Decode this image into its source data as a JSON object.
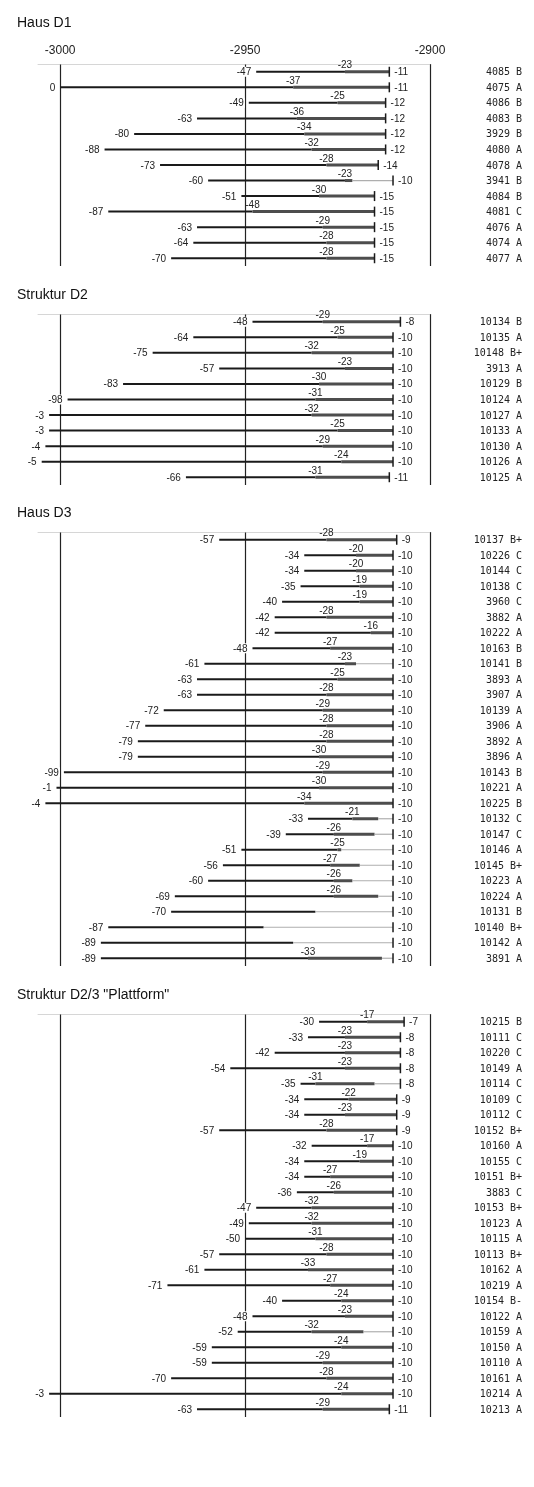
{
  "chart_data": [
    {
      "type": "bar",
      "title": "Haus D1",
      "orientation": "horizontal",
      "grid": "x",
      "xlim": [
        -3006,
        -2900
      ],
      "xticks": [
        -3000,
        -2950,
        -2900
      ],
      "categories": [
        "4085 B",
        "4075 A",
        "4086 B",
        "4083 B",
        "3929 B",
        "4080 A",
        "4078 A",
        "3941 B",
        "4084 B",
        "4081 C",
        "4076 A",
        "4074 A",
        "4077 A"
      ],
      "series": [
        {
          "color": "#1a1a1a",
          "base": [
            -2947,
            -3000,
            -2949,
            -2963,
            -2980,
            -2988,
            -2973,
            -2960,
            -2951,
            -2987,
            -2963,
            -2964,
            -2970
          ],
          "values": [
            24,
            63,
            24,
            27,
            46,
            56,
            45,
            37,
            21,
            39,
            34,
            36,
            42
          ]
        },
        {
          "color": "#4d4d4d",
          "base": [
            -2923,
            -2937,
            -2925,
            -2936,
            -2934,
            -2932,
            -2928,
            -2923,
            -2930,
            -2948,
            -2929,
            -2928,
            -2928
          ],
          "values": [
            12,
            26,
            13,
            24,
            22,
            20,
            14,
            2,
            15,
            33,
            14,
            13,
            13
          ]
        },
        {
          "color": "#9a9a9a",
          "line_style": "dotted",
          "base": [
            null,
            null,
            null,
            null,
            null,
            null,
            null,
            -2921,
            null,
            null,
            null,
            null,
            null
          ],
          "values": [
            null,
            null,
            null,
            null,
            null,
            null,
            null,
            11,
            null,
            null,
            null,
            null,
            null
          ]
        }
      ],
      "annotations": [
        {
          "text": "-47",
          "x": -2947,
          "y": "4085 B"
        },
        {
          "text": "-23",
          "x": -2923,
          "y": "4085 B"
        },
        {
          "text": "-11",
          "x": -2911,
          "y": "4085 B"
        },
        {
          "text": "0",
          "x": -3000,
          "y": "4075 A"
        },
        {
          "text": "-37",
          "x": -2937,
          "y": "4075 A"
        },
        {
          "text": "-11",
          "x": -2911,
          "y": "4075 A"
        },
        {
          "text": "-49",
          "x": -2949,
          "y": "4086 B"
        },
        {
          "text": "-25",
          "x": -2925,
          "y": "4086 B"
        },
        {
          "text": "-12",
          "x": -2912,
          "y": "4086 B"
        },
        {
          "text": "-63",
          "x": -2963,
          "y": "4083 B"
        },
        {
          "text": "-36",
          "x": -2936,
          "y": "4083 B"
        },
        {
          "text": "-12",
          "x": -2912,
          "y": "4083 B"
        },
        {
          "text": "-80",
          "x": -2980,
          "y": "3929 B"
        },
        {
          "text": "-34",
          "x": -2934,
          "y": "3929 B"
        },
        {
          "text": "-12",
          "x": -2912,
          "y": "3929 B"
        },
        {
          "text": "-88",
          "x": -2988,
          "y": "4080 A"
        },
        {
          "text": "-32",
          "x": -2932,
          "y": "4080 A"
        },
        {
          "text": "-12",
          "x": -2912,
          "y": "4080 A"
        },
        {
          "text": "-73",
          "x": -2973,
          "y": "4078 A"
        },
        {
          "text": "-28",
          "x": -2928,
          "y": "4078 A"
        },
        {
          "text": "-14",
          "x": -2914,
          "y": "4078 A"
        },
        {
          "text": "-60",
          "x": -2960,
          "y": "3941 B"
        },
        {
          "text": "-23",
          "x": -2923,
          "y": "3941 B"
        },
        {
          "text": "-10",
          "x": -2910,
          "y": "3941 B"
        },
        {
          "text": "-51",
          "x": -2951,
          "y": "4084 B"
        },
        {
          "text": "-30",
          "x": -2930,
          "y": "4084 B"
        },
        {
          "text": "-15",
          "x": -2915,
          "y": "4084 B"
        },
        {
          "text": "-87",
          "x": -2987,
          "y": "4081 C"
        },
        {
          "text": "-48",
          "x": -2948,
          "y": "4081 C"
        },
        {
          "text": "-15",
          "x": -2915,
          "y": "4081 C"
        },
        {
          "text": "-63",
          "x": -2963,
          "y": "4076 A"
        },
        {
          "text": "-29",
          "x": -2929,
          "y": "4076 A"
        },
        {
          "text": "-15",
          "x": -2915,
          "y": "4076 A"
        },
        {
          "text": "-64",
          "x": -2964,
          "y": "4074 A"
        },
        {
          "text": "-28",
          "x": -2928,
          "y": "4074 A"
        },
        {
          "text": "-15",
          "x": -2915,
          "y": "4074 A"
        },
        {
          "text": "-70",
          "x": -2970,
          "y": "4077 A"
        },
        {
          "text": "-28",
          "x": -2928,
          "y": "4077 A"
        },
        {
          "text": "-15",
          "x": -2915,
          "y": "4077 A"
        }
      ]
    },
    {
      "type": "bar",
      "title": "Struktur D2",
      "orientation": "horizontal",
      "grid": "x",
      "tick_labels": "y",
      "xlim": [
        -3006,
        -2900
      ],
      "xticks": [
        -3000,
        -2950,
        -2900
      ],
      "categories": [
        "10134 B",
        "10135 A",
        "10148 B+",
        "3913 A",
        "10129 B",
        "10124 A",
        "10127 A",
        "10133 A",
        "10130 A",
        "10126 A",
        "10125 A"
      ],
      "series": [
        {
          "color": "#1a1a1a",
          "base": [
            -2948,
            -2964,
            -2975,
            -2957,
            -2983,
            -2998,
            -3003,
            -3003,
            -3004,
            -3005,
            -2966
          ],
          "values": [
            19,
            39,
            43,
            34,
            53,
            67,
            71,
            78,
            75,
            81,
            35
          ]
        },
        {
          "color": "#4d4d4d",
          "base": [
            -2929,
            -2925,
            -2932,
            -2923,
            -2930,
            -2931,
            -2932,
            -2925,
            -2929,
            -2924,
            -2931
          ],
          "values": [
            21,
            15,
            22,
            13,
            20,
            21,
            22,
            15,
            19,
            14,
            20
          ]
        }
      ],
      "annotations": [
        {
          "text": "-48",
          "x": -2948,
          "y": "10134 B"
        },
        {
          "text": "-29",
          "x": -2929,
          "y": "10134 B"
        },
        {
          "text": "-8",
          "x": -2908,
          "y": "10134 B"
        },
        {
          "text": "-64",
          "x": -2964,
          "y": "10135 A"
        },
        {
          "text": "-25",
          "x": -2925,
          "y": "10135 A"
        },
        {
          "text": "-10",
          "x": -2910,
          "y": "10135 A"
        },
        {
          "text": "-75",
          "x": -2975,
          "y": "10148 B+"
        },
        {
          "text": "-32",
          "x": -2932,
          "y": "10148 B+"
        },
        {
          "text": "-10",
          "x": -2910,
          "y": "10148 B+"
        },
        {
          "text": "-57",
          "x": -2957,
          "y": "3913 A"
        },
        {
          "text": "-23",
          "x": -2923,
          "y": "3913 A"
        },
        {
          "text": "-10",
          "x": -2910,
          "y": "3913 A"
        },
        {
          "text": "-83",
          "x": -2983,
          "y": "10129 B"
        },
        {
          "text": "-30",
          "x": -2930,
          "y": "10129 B"
        },
        {
          "text": "-10",
          "x": -2910,
          "y": "10129 B"
        },
        {
          "text": "-98",
          "x": -2998,
          "y": "10124 A"
        },
        {
          "text": "-31",
          "x": -2931,
          "y": "10124 A"
        },
        {
          "text": "-10",
          "x": -2910,
          "y": "10124 A"
        },
        {
          "text": "-3",
          "x": -3003,
          "y": "10127 A"
        },
        {
          "text": "-32",
          "x": -2932,
          "y": "10127 A"
        },
        {
          "text": "-10",
          "x": -2910,
          "y": "10127 A"
        },
        {
          "text": "-3",
          "x": -3003,
          "y": "10133 A"
        },
        {
          "text": "-25",
          "x": -2925,
          "y": "10133 A"
        },
        {
          "text": "-10",
          "x": -2910,
          "y": "10133 A"
        },
        {
          "text": "-4",
          "x": -3004,
          "y": "10130 A"
        },
        {
          "text": "-29",
          "x": -2929,
          "y": "10130 A"
        },
        {
          "text": "-10",
          "x": -2910,
          "y": "10130 A"
        },
        {
          "text": "-5",
          "x": -3005,
          "y": "10126 A"
        },
        {
          "text": "-24",
          "x": -2924,
          "y": "10126 A"
        },
        {
          "text": "-10",
          "x": -2910,
          "y": "10126 A"
        },
        {
          "text": "-66",
          "x": -2966,
          "y": "10125 A"
        },
        {
          "text": "-31",
          "x": -2931,
          "y": "10125 A"
        },
        {
          "text": "-11",
          "x": -2911,
          "y": "10125 A"
        }
      ]
    },
    {
      "type": "bar",
      "title": "Haus D3",
      "orientation": "horizontal",
      "grid": "x",
      "tick_labels": "y",
      "xlim": [
        -3006,
        -2900
      ],
      "xticks": [
        -3000,
        -2950,
        -2900
      ],
      "categories": [
        "10137 B+",
        "10226 C",
        "10144 C",
        "10138 C",
        "3960 C",
        "3882 A",
        "10222 A",
        "10163 B",
        "10141 B",
        "3893 A",
        "3907 A",
        "10139 A",
        "3906 A",
        "3892 A",
        "3896 A",
        "10143 B",
        "10221 A",
        "10225 B",
        "10132 C",
        "10147 C",
        "10146 A",
        "10145 B+",
        "10223 A",
        "10224 A",
        "10131 B",
        "10140 B+",
        "10142 A",
        "3891 A"
      ],
      "series": [
        {
          "color": "#1a1a1a",
          "base": [
            -2957,
            -2934,
            -2934,
            -2935,
            -2940,
            -2942,
            -2942,
            -2948,
            -2961,
            -2963,
            -2963,
            -2972,
            -2977,
            -2979,
            -2979,
            -2999,
            -3001,
            -3004,
            -2933,
            -2939,
            -2951,
            -2956,
            -2960,
            -2969,
            -2970,
            -2987,
            -2989,
            -2989
          ],
          "values": [
            29,
            14,
            14,
            16,
            21,
            14,
            26,
            21,
            38,
            38,
            35,
            43,
            49,
            51,
            49,
            70,
            71,
            70,
            12,
            13,
            26,
            29,
            34,
            43,
            39,
            42,
            52,
            56
          ]
        },
        {
          "color": "#4d4d4d",
          "base": [
            -2928,
            -2920,
            -2920,
            -2919,
            -2919,
            -2928,
            -2916,
            -2927,
            -2923,
            -2925,
            -2928,
            -2929,
            -2928,
            -2928,
            -2930,
            -2929,
            -2930,
            -2934,
            -2921,
            -2926,
            -2925,
            -2927,
            -2926,
            -2926,
            null,
            null,
            null,
            -2933
          ],
          "values": [
            19,
            10,
            10,
            9,
            9,
            18,
            6,
            17,
            3,
            15,
            18,
            19,
            18,
            18,
            20,
            19,
            20,
            24,
            7,
            11,
            1,
            8,
            5,
            12,
            null,
            null,
            null,
            20
          ]
        },
        {
          "color": "#9a9a9a",
          "line_style": "dotted",
          "base": [
            null,
            null,
            null,
            null,
            null,
            null,
            null,
            null,
            -2920,
            null,
            null,
            null,
            null,
            null,
            null,
            null,
            null,
            null,
            -2914,
            -2915,
            -2924,
            -2919,
            -2921,
            -2914,
            -2931,
            -2945,
            -2937,
            -2913
          ],
          "values": [
            null,
            null,
            null,
            null,
            null,
            null,
            null,
            null,
            10,
            null,
            null,
            null,
            null,
            null,
            null,
            null,
            null,
            null,
            4,
            5,
            14,
            9,
            11,
            4,
            21,
            35,
            27,
            3
          ]
        }
      ],
      "annotations": [
        {
          "text": "-57",
          "x": -2957,
          "y": "10137 B+"
        },
        {
          "text": "-28",
          "x": -2928,
          "y": "10137 B+"
        },
        {
          "text": "-9",
          "x": -2909,
          "y": "10137 B+"
        },
        {
          "text": "-34",
          "x": -2934,
          "y": "10226 C"
        },
        {
          "text": "-20",
          "x": -2920,
          "y": "10226 C"
        },
        {
          "text": "-10",
          "x": -2910,
          "y": "10226 C"
        },
        {
          "text": "-34",
          "x": -2934,
          "y": "10144 C"
        },
        {
          "text": "-20",
          "x": -2920,
          "y": "10144 C"
        },
        {
          "text": "-10",
          "x": -2910,
          "y": "10144 C"
        },
        {
          "text": "-35",
          "x": -2935,
          "y": "10138 C"
        },
        {
          "text": "-19",
          "x": -2919,
          "y": "10138 C"
        },
        {
          "text": "-10",
          "x": -2910,
          "y": "10138 C"
        },
        {
          "text": "-40",
          "x": -2940,
          "y": "3960 C"
        },
        {
          "text": "-19",
          "x": -2919,
          "y": "3960 C"
        },
        {
          "text": "-10",
          "x": -2910,
          "y": "3960 C"
        },
        {
          "text": "-42",
          "x": -2942,
          "y": "3882 A"
        },
        {
          "text": "-28",
          "x": -2928,
          "y": "3882 A"
        },
        {
          "text": "-10",
          "x": -2910,
          "y": "3882 A"
        },
        {
          "text": "-42",
          "x": -2942,
          "y": "10222 A"
        },
        {
          "text": "-16",
          "x": -2916,
          "y": "10222 A"
        },
        {
          "text": "-10",
          "x": -2910,
          "y": "10222 A"
        },
        {
          "text": "-48",
          "x": -2948,
          "y": "10163 B"
        },
        {
          "text": "-27",
          "x": -2927,
          "y": "10163 B"
        },
        {
          "text": "-10",
          "x": -2910,
          "y": "10163 B"
        },
        {
          "text": "-61",
          "x": -2961,
          "y": "10141 B"
        },
        {
          "text": "-23",
          "x": -2923,
          "y": "10141 B"
        },
        {
          "text": "-10",
          "x": -2910,
          "y": "10141 B"
        },
        {
          "text": "-63",
          "x": -2963,
          "y": "3893 A"
        },
        {
          "text": "-25",
          "x": -2925,
          "y": "3893 A"
        },
        {
          "text": "-10",
          "x": -2910,
          "y": "3893 A"
        },
        {
          "text": "-63",
          "x": -2963,
          "y": "3907 A"
        },
        {
          "text": "-28",
          "x": -2928,
          "y": "3907 A"
        },
        {
          "text": "-10",
          "x": -2910,
          "y": "3907 A"
        },
        {
          "text": "-72",
          "x": -2972,
          "y": "10139 A"
        },
        {
          "text": "-29",
          "x": -2929,
          "y": "10139 A"
        },
        {
          "text": "-10",
          "x": -2910,
          "y": "10139 A"
        },
        {
          "text": "-77",
          "x": -2977,
          "y": "3906 A"
        },
        {
          "text": "-28",
          "x": -2928,
          "y": "3906 A"
        },
        {
          "text": "-10",
          "x": -2910,
          "y": "3906 A"
        },
        {
          "text": "-79",
          "x": -2979,
          "y": "3892 A"
        },
        {
          "text": "-28",
          "x": -2928,
          "y": "3892 A"
        },
        {
          "text": "-10",
          "x": -2910,
          "y": "3892 A"
        },
        {
          "text": "-79",
          "x": -2979,
          "y": "3896 A"
        },
        {
          "text": "-30",
          "x": -2930,
          "y": "3896 A"
        },
        {
          "text": "-10",
          "x": -2910,
          "y": "3896 A"
        },
        {
          "text": "-99",
          "x": -2999,
          "y": "10143 B"
        },
        {
          "text": "-29",
          "x": -2929,
          "y": "10143 B"
        },
        {
          "text": "-10",
          "x": -2910,
          "y": "10143 B"
        },
        {
          "text": "-1",
          "x": -3001,
          "y": "10221 A"
        },
        {
          "text": "-30",
          "x": -2930,
          "y": "10221 A"
        },
        {
          "text": "-10",
          "x": -2910,
          "y": "10221 A"
        },
        {
          "text": "-4",
          "x": -3004,
          "y": "10225 B"
        },
        {
          "text": "-34",
          "x": -2934,
          "y": "10225 B"
        },
        {
          "text": "-10",
          "x": -2910,
          "y": "10225 B"
        },
        {
          "text": "-33",
          "x": -2933,
          "y": "10132 C"
        },
        {
          "text": "-21",
          "x": -2921,
          "y": "10132 C"
        },
        {
          "text": "-10",
          "x": -2910,
          "y": "10132 C"
        },
        {
          "text": "-39",
          "x": -2939,
          "y": "10147 C"
        },
        {
          "text": "-26",
          "x": -2926,
          "y": "10147 C"
        },
        {
          "text": "-10",
          "x": -2910,
          "y": "10147 C"
        },
        {
          "text": "-51",
          "x": -2951,
          "y": "10146 A"
        },
        {
          "text": "-25",
          "x": -2925,
          "y": "10146 A"
        },
        {
          "text": "-10",
          "x": -2910,
          "y": "10146 A"
        },
        {
          "text": "-56",
          "x": -2956,
          "y": "10145 B+"
        },
        {
          "text": "-27",
          "x": -2927,
          "y": "10145 B+"
        },
        {
          "text": "-10",
          "x": -2910,
          "y": "10145 B+"
        },
        {
          "text": "-60",
          "x": -2960,
          "y": "10223 A"
        },
        {
          "text": "-26",
          "x": -2926,
          "y": "10223 A"
        },
        {
          "text": "-10",
          "x": -2910,
          "y": "10223 A"
        },
        {
          "text": "-69",
          "x": -2969,
          "y": "10224 A"
        },
        {
          "text": "-26",
          "x": -2926,
          "y": "10224 A"
        },
        {
          "text": "-10",
          "x": -2910,
          "y": "10224 A"
        },
        {
          "text": "-70",
          "x": -2970,
          "y": "10131 B"
        },
        {
          "text": "-10",
          "x": -2910,
          "y": "10131 B"
        },
        {
          "text": "-87",
          "x": -2987,
          "y": "10140 B+"
        },
        {
          "text": "-10",
          "x": -2910,
          "y": "10140 B+"
        },
        {
          "text": "-89",
          "x": -2989,
          "y": "10142 A"
        },
        {
          "text": "-10",
          "x": -2910,
          "y": "10142 A"
        },
        {
          "text": "-89",
          "x": -2989,
          "y": "3891 A"
        },
        {
          "text": "-33",
          "x": -2933,
          "y": "3891 A"
        },
        {
          "text": "-10",
          "x": -2910,
          "y": "3891 A"
        }
      ]
    },
    {
      "type": "bar",
      "title": "Struktur D2/3 \"Plattform\"",
      "orientation": "horizontal",
      "grid": "x",
      "tick_labels": "y",
      "xlim": [
        -3006,
        -2900
      ],
      "xticks": [
        -3000,
        -2950,
        -2900
      ],
      "categories": [
        "10215 B",
        "10111 C",
        "10220 C",
        "10149 A",
        "10114 C",
        "10109 C",
        "10112 C",
        "10152 B+",
        "10160 A",
        "10155 C",
        "10151 B+",
        "3883 C",
        "10153 B+",
        "10123 A",
        "10115 A",
        "10113 B+",
        "10162 A",
        "10219 A",
        "10154 B-",
        "10122 A",
        "10159 A",
        "10150 A",
        "10110 A",
        "10161 A",
        "10214 A",
        "10213 A"
      ],
      "series": [
        {
          "color": "#1a1a1a",
          "base": [
            -2930,
            -2933,
            -2942,
            -2954,
            -2935,
            -2934,
            -2934,
            -2957,
            -2932,
            -2934,
            -2934,
            -2936,
            -2947,
            -2949,
            -2950,
            -2957,
            -2961,
            -2971,
            -2940,
            -2948,
            -2952,
            -2959,
            -2959,
            -2970,
            -3003,
            -2963
          ],
          "values": [
            13,
            10,
            19,
            31,
            4,
            12,
            11,
            29,
            15,
            15,
            7,
            10,
            15,
            17,
            19,
            29,
            28,
            44,
            16,
            25,
            20,
            35,
            30,
            42,
            79,
            34
          ]
        },
        {
          "color": "#4d4d4d",
          "base": [
            -2917,
            -2923,
            -2923,
            -2923,
            -2931,
            -2922,
            -2923,
            -2928,
            -2917,
            -2919,
            -2927,
            -2926,
            -2932,
            -2932,
            -2931,
            -2928,
            -2933,
            -2927,
            -2924,
            -2923,
            -2932,
            -2924,
            -2929,
            -2928,
            -2924,
            -2929
          ],
          "values": [
            10,
            15,
            15,
            15,
            16,
            13,
            14,
            19,
            7,
            9,
            17,
            16,
            22,
            22,
            21,
            18,
            23,
            17,
            14,
            13,
            14,
            14,
            19,
            18,
            14,
            18
          ]
        },
        {
          "color": "#9a9a9a",
          "line_style": "dotted",
          "base": [
            null,
            null,
            null,
            null,
            -2915,
            null,
            null,
            null,
            null,
            null,
            null,
            null,
            null,
            null,
            null,
            null,
            null,
            null,
            null,
            null,
            -2918,
            null,
            null,
            null,
            null,
            null
          ],
          "values": [
            null,
            null,
            null,
            null,
            7,
            null,
            null,
            null,
            null,
            null,
            null,
            null,
            null,
            null,
            null,
            null,
            null,
            null,
            null,
            null,
            8,
            null,
            null,
            null,
            null,
            null
          ]
        }
      ],
      "annotations": [
        {
          "text": "-30",
          "x": -2930,
          "y": "10215 B"
        },
        {
          "text": "-17",
          "x": -2917,
          "y": "10215 B"
        },
        {
          "text": "-7",
          "x": -2907,
          "y": "10215 B"
        },
        {
          "text": "-33",
          "x": -2933,
          "y": "10111 C"
        },
        {
          "text": "-23",
          "x": -2923,
          "y": "10111 C"
        },
        {
          "text": "-8",
          "x": -2908,
          "y": "10111 C"
        },
        {
          "text": "-42",
          "x": -2942,
          "y": "10220 C"
        },
        {
          "text": "-23",
          "x": -2923,
          "y": "10220 C"
        },
        {
          "text": "-8",
          "x": -2908,
          "y": "10220 C"
        },
        {
          "text": "-54",
          "x": -2954,
          "y": "10149 A"
        },
        {
          "text": "-23",
          "x": -2923,
          "y": "10149 A"
        },
        {
          "text": "-8",
          "x": -2908,
          "y": "10149 A"
        },
        {
          "text": "-35",
          "x": -2935,
          "y": "10114 C"
        },
        {
          "text": "-31",
          "x": -2931,
          "y": "10114 C"
        },
        {
          "text": "-8",
          "x": -2908,
          "y": "10114 C"
        },
        {
          "text": "-34",
          "x": -2934,
          "y": "10109 C"
        },
        {
          "text": "-22",
          "x": -2922,
          "y": "10109 C"
        },
        {
          "text": "-9",
          "x": -2909,
          "y": "10109 C"
        },
        {
          "text": "-34",
          "x": -2934,
          "y": "10112 C"
        },
        {
          "text": "-23",
          "x": -2923,
          "y": "10112 C"
        },
        {
          "text": "-9",
          "x": -2909,
          "y": "10112 C"
        },
        {
          "text": "-57",
          "x": -2957,
          "y": "10152 B+"
        },
        {
          "text": "-28",
          "x": -2928,
          "y": "10152 B+"
        },
        {
          "text": "-9",
          "x": -2909,
          "y": "10152 B+"
        },
        {
          "text": "-32",
          "x": -2932,
          "y": "10160 A"
        },
        {
          "text": "-17",
          "x": -2917,
          "y": "10160 A"
        },
        {
          "text": "-10",
          "x": -2910,
          "y": "10160 A"
        },
        {
          "text": "-34",
          "x": -2934,
          "y": "10155 C"
        },
        {
          "text": "-19",
          "x": -2919,
          "y": "10155 C"
        },
        {
          "text": "-10",
          "x": -2910,
          "y": "10155 C"
        },
        {
          "text": "-34",
          "x": -2934,
          "y": "10151 B+"
        },
        {
          "text": "-27",
          "x": -2927,
          "y": "10151 B+"
        },
        {
          "text": "-10",
          "x": -2910,
          "y": "10151 B+"
        },
        {
          "text": "-36",
          "x": -2936,
          "y": "3883 C"
        },
        {
          "text": "-26",
          "x": -2926,
          "y": "3883 C"
        },
        {
          "text": "-10",
          "x": -2910,
          "y": "3883 C"
        },
        {
          "text": "-47",
          "x": -2947,
          "y": "10153 B+"
        },
        {
          "text": "-32",
          "x": -2932,
          "y": "10153 B+"
        },
        {
          "text": "-10",
          "x": -2910,
          "y": "10153 B+"
        },
        {
          "text": "-49",
          "x": -2949,
          "y": "10123 A"
        },
        {
          "text": "-32",
          "x": -2932,
          "y": "10123 A"
        },
        {
          "text": "-10",
          "x": -2910,
          "y": "10123 A"
        },
        {
          "text": "-50",
          "x": -2950,
          "y": "10115 A"
        },
        {
          "text": "-31",
          "x": -2931,
          "y": "10115 A"
        },
        {
          "text": "-10",
          "x": -2910,
          "y": "10115 A"
        },
        {
          "text": "-57",
          "x": -2957,
          "y": "10113 B+"
        },
        {
          "text": "-28",
          "x": -2928,
          "y": "10113 B+"
        },
        {
          "text": "-10",
          "x": -2910,
          "y": "10113 B+"
        },
        {
          "text": "-61",
          "x": -2961,
          "y": "10162 A"
        },
        {
          "text": "-33",
          "x": -2933,
          "y": "10162 A"
        },
        {
          "text": "-10",
          "x": -2910,
          "y": "10162 A"
        },
        {
          "text": "-71",
          "x": -2971,
          "y": "10219 A"
        },
        {
          "text": "-27",
          "x": -2927,
          "y": "10219 A"
        },
        {
          "text": "-10",
          "x": -2910,
          "y": "10219 A"
        },
        {
          "text": "-40",
          "x": -2940,
          "y": "10154 B-"
        },
        {
          "text": "-24",
          "x": -2924,
          "y": "10154 B-"
        },
        {
          "text": "-10",
          "x": -2910,
          "y": "10154 B-"
        },
        {
          "text": "-48",
          "x": -2948,
          "y": "10122 A"
        },
        {
          "text": "-23",
          "x": -2923,
          "y": "10122 A"
        },
        {
          "text": "-10",
          "x": -2910,
          "y": "10122 A"
        },
        {
          "text": "-52",
          "x": -2952,
          "y": "10159 A"
        },
        {
          "text": "-32",
          "x": -2932,
          "y": "10159 A"
        },
        {
          "text": "-10",
          "x": -2910,
          "y": "10159 A"
        },
        {
          "text": "-59",
          "x": -2959,
          "y": "10150 A"
        },
        {
          "text": "-24",
          "x": -2924,
          "y": "10150 A"
        },
        {
          "text": "-10",
          "x": -2910,
          "y": "10150 A"
        },
        {
          "text": "-59",
          "x": -2959,
          "y": "10110 A"
        },
        {
          "text": "-29",
          "x": -2929,
          "y": "10110 A"
        },
        {
          "text": "-10",
          "x": -2910,
          "y": "10110 A"
        },
        {
          "text": "-70",
          "x": -2970,
          "y": "10161 A"
        },
        {
          "text": "-28",
          "x": -2928,
          "y": "10161 A"
        },
        {
          "text": "-10",
          "x": -2910,
          "y": "10161 A"
        },
        {
          "text": "-3",
          "x": -3003,
          "y": "10214 A"
        },
        {
          "text": "-24",
          "x": -2924,
          "y": "10214 A"
        },
        {
          "text": "-10",
          "x": -2910,
          "y": "10214 A"
        },
        {
          "text": "-63",
          "x": -2963,
          "y": "10213 A"
        },
        {
          "text": "-29",
          "x": -2929,
          "y": "10213 A"
        },
        {
          "text": "-11",
          "x": -2911,
          "y": "10213 A"
        }
      ]
    }
  ]
}
